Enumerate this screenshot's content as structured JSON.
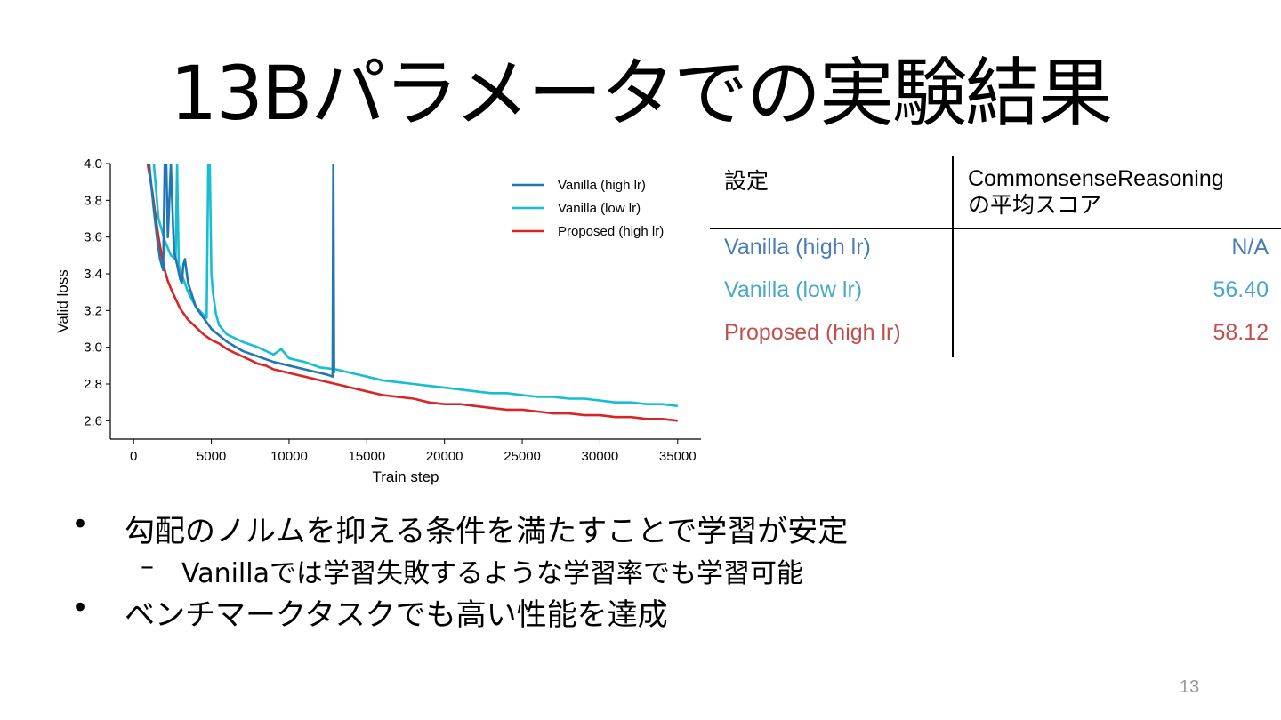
{
  "slide": {
    "title": "13Bパラメータでの実験結果",
    "page_number": "13"
  },
  "table": {
    "header_setting": "設定",
    "header_score_line1": "CommonsenseReasoning",
    "header_score_line2": "の平均スコア",
    "rows": [
      {
        "label": "Vanilla (high lr)",
        "score": "N/A",
        "color": "#4a7db5"
      },
      {
        "label": "Vanilla (low lr)",
        "score": "56.40",
        "color": "#47a9c8"
      },
      {
        "label": "Proposed (high lr)",
        "score": "58.12",
        "color": "#c0504d"
      }
    ]
  },
  "bullets": [
    {
      "level": 1,
      "marker": "•",
      "text": "勾配のノルムを抑える条件を満たすことで学習が安定"
    },
    {
      "level": 2,
      "marker": "–",
      "text": "Vanillaでは学習失敗するような学習率でも学習可能"
    },
    {
      "level": 1,
      "marker": "•",
      "text": "ベンチマークタスクでも高い性能を達成"
    }
  ],
  "chart_data": {
    "type": "line",
    "title": "",
    "xlabel": "Train step",
    "ylabel": "Valid loss",
    "xlim": [
      -1500,
      36500
    ],
    "ylim": [
      2.5,
      4.0
    ],
    "xticks": [
      0,
      5000,
      10000,
      15000,
      20000,
      25000,
      30000,
      35000
    ],
    "yticks": [
      2.6,
      2.8,
      3.0,
      3.2,
      3.4,
      3.6,
      3.8,
      4.0
    ],
    "grid": false,
    "legend": "top-right",
    "series": [
      {
        "name": "Vanilla (high lr)",
        "color": "#1f77b4",
        "x": [
          1000,
          1300,
          1500,
          1700,
          1900,
          2000,
          2100,
          2200,
          2400,
          2600,
          2800,
          3000,
          3100,
          3200,
          3300,
          3500,
          4000,
          5000,
          6000,
          7000,
          8000,
          9000,
          10000,
          11000,
          12000,
          12500,
          12800,
          12850,
          12900
        ],
        "y": [
          4.0,
          3.75,
          3.6,
          3.48,
          3.42,
          4.0,
          4.0,
          3.6,
          4.0,
          3.52,
          3.45,
          3.37,
          3.35,
          3.45,
          3.48,
          3.35,
          3.22,
          3.1,
          3.03,
          2.98,
          2.95,
          2.92,
          2.9,
          2.88,
          2.86,
          2.85,
          2.84,
          4.0,
          2.86
        ]
      },
      {
        "name": "Vanilla (low lr)",
        "color": "#17becf",
        "x": [
          1300,
          1600,
          2000,
          2400,
          2700,
          2800,
          2900,
          3000,
          3500,
          4000,
          4700,
          4800,
          4900,
          5000,
          5100,
          5300,
          5500,
          6000,
          7000,
          8000,
          9000,
          9500,
          10000,
          11000,
          12000,
          13000,
          14000,
          15000,
          16000,
          17000,
          18000,
          19000,
          20000,
          21000,
          22000,
          23000,
          24000,
          25000,
          26000,
          27000,
          28000,
          29000,
          30000,
          31000,
          32000,
          33000,
          34000,
          35000
        ],
        "y": [
          4.0,
          3.7,
          3.58,
          3.5,
          3.48,
          4.0,
          3.45,
          3.42,
          3.3,
          3.22,
          3.16,
          4.0,
          4.0,
          3.4,
          3.3,
          3.18,
          3.12,
          3.07,
          3.03,
          3.0,
          2.96,
          2.99,
          2.94,
          2.92,
          2.89,
          2.88,
          2.86,
          2.84,
          2.82,
          2.81,
          2.8,
          2.79,
          2.78,
          2.77,
          2.76,
          2.75,
          2.75,
          2.74,
          2.73,
          2.73,
          2.72,
          2.72,
          2.71,
          2.7,
          2.7,
          2.69,
          2.69,
          2.68
        ]
      },
      {
        "name": "Proposed (high lr)",
        "color": "#d62728",
        "x": [
          900,
          1200,
          1400,
          1600,
          1800,
          2000,
          2200,
          2500,
          3000,
          3500,
          4000,
          4500,
          5000,
          5500,
          6000,
          6500,
          7000,
          7500,
          8000,
          8500,
          9000,
          9500,
          10000,
          11000,
          12000,
          13000,
          14000,
          15000,
          16000,
          17000,
          18000,
          19000,
          20000,
          21000,
          22000,
          23000,
          24000,
          25000,
          26000,
          27000,
          28000,
          29000,
          30000,
          31000,
          32000,
          33000,
          34000,
          35000
        ],
        "y": [
          4.0,
          3.85,
          3.72,
          3.6,
          3.5,
          3.42,
          3.36,
          3.3,
          3.21,
          3.15,
          3.11,
          3.07,
          3.04,
          3.02,
          2.99,
          2.97,
          2.95,
          2.93,
          2.91,
          2.9,
          2.88,
          2.87,
          2.86,
          2.84,
          2.82,
          2.8,
          2.78,
          2.76,
          2.74,
          2.73,
          2.72,
          2.7,
          2.69,
          2.69,
          2.68,
          2.67,
          2.66,
          2.66,
          2.65,
          2.64,
          2.64,
          2.63,
          2.63,
          2.62,
          2.62,
          2.61,
          2.61,
          2.6
        ]
      }
    ]
  }
}
